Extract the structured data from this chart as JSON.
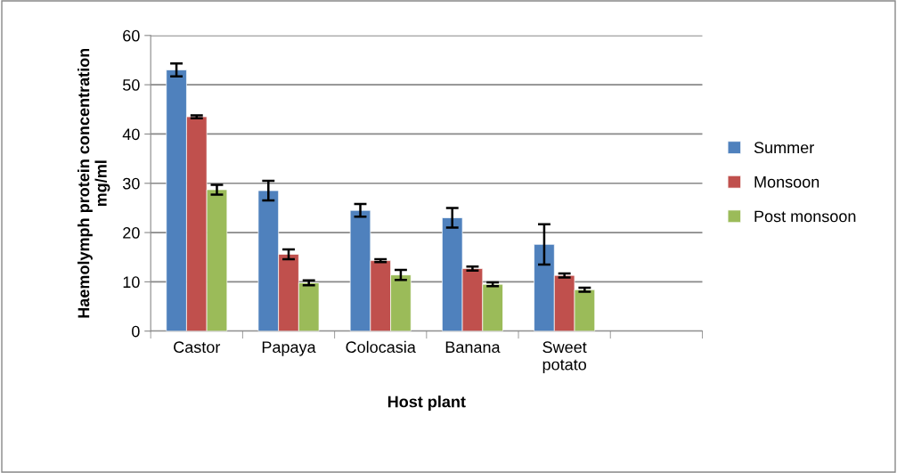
{
  "chart_data": {
    "type": "bar",
    "xlabel": "Host plant",
    "ylabel": "Haemolymph protein concentration\nmg/ml",
    "categories": [
      "Castor",
      "Papaya",
      "Colocasia",
      "Banana",
      "Sweet\npotato",
      null
    ],
    "series": [
      {
        "name": "Summer",
        "color": "#4f81bd",
        "values": [
          53,
          28.5,
          24.5,
          23,
          17.6,
          null
        ],
        "errors": [
          1.3,
          2,
          1.3,
          2,
          4.1,
          null
        ]
      },
      {
        "name": "Monsoon",
        "color": "#c0504d",
        "values": [
          43.5,
          15.6,
          14.3,
          12.7,
          11.3,
          null
        ],
        "errors": [
          0.3,
          1,
          0.3,
          0.4,
          0.4,
          null
        ]
      },
      {
        "name": "Post monsoon",
        "color": "#9bbb59",
        "values": [
          28.7,
          9.8,
          11.4,
          9.5,
          8.4,
          null
        ],
        "errors": [
          1,
          0.5,
          1,
          0.4,
          0.4,
          null
        ]
      }
    ],
    "ylim": [
      0,
      60
    ],
    "yticks": [
      0,
      10,
      20,
      30,
      40,
      50,
      60
    ],
    "grid": "y",
    "legend": "right"
  }
}
